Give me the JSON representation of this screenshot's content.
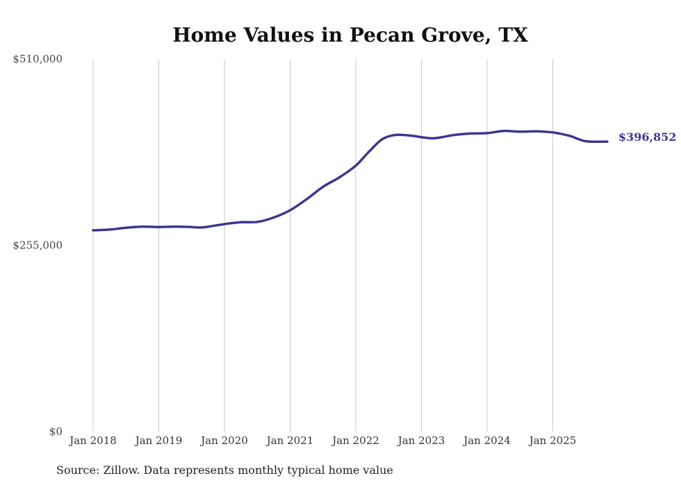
{
  "chart_data": {
    "type": "line",
    "title": "Home Values in Pecan Grove, TX",
    "source": "Source: Zillow. Data represents monthly typical home value",
    "ylim": [
      0,
      510000
    ],
    "y_ticks": [
      {
        "value": 0,
        "label": "$0"
      },
      {
        "value": 255000,
        "label": "$255,000"
      },
      {
        "value": 510000,
        "label": "$510,000"
      }
    ],
    "x_ticks": [
      {
        "year": 2018,
        "label": "Jan 2018"
      },
      {
        "year": 2019,
        "label": "Jan 2019"
      },
      {
        "year": 2020,
        "label": "Jan 2020"
      },
      {
        "year": 2021,
        "label": "Jan 2021"
      },
      {
        "year": 2022,
        "label": "Jan 2022"
      },
      {
        "year": 2023,
        "label": "Jan 2023"
      },
      {
        "year": 2024,
        "label": "Jan 2024"
      },
      {
        "year": 2025,
        "label": "Jan 2025"
      }
    ],
    "xlim": [
      2018.0,
      2025.83
    ],
    "series": [
      {
        "name": "Typical home value",
        "color": "#3d3590",
        "end_label": "$396,852",
        "points": [
          [
            2018.0,
            275500
          ],
          [
            2018.25,
            276500
          ],
          [
            2018.5,
            279000
          ],
          [
            2018.75,
            280500
          ],
          [
            2019.0,
            280000
          ],
          [
            2019.25,
            280500
          ],
          [
            2019.5,
            280000
          ],
          [
            2019.67,
            279500
          ],
          [
            2020.0,
            284000
          ],
          [
            2020.25,
            286500
          ],
          [
            2020.5,
            287000
          ],
          [
            2020.75,
            293000
          ],
          [
            2021.0,
            303000
          ],
          [
            2021.25,
            318000
          ],
          [
            2021.5,
            335000
          ],
          [
            2021.75,
            348000
          ],
          [
            2022.0,
            364000
          ],
          [
            2022.2,
            383000
          ],
          [
            2022.4,
            400000
          ],
          [
            2022.6,
            406000
          ],
          [
            2022.85,
            405000
          ],
          [
            2023.0,
            403000
          ],
          [
            2023.2,
            401500
          ],
          [
            2023.5,
            406000
          ],
          [
            2023.75,
            408000
          ],
          [
            2024.0,
            408500
          ],
          [
            2024.25,
            411500
          ],
          [
            2024.5,
            410500
          ],
          [
            2024.75,
            411000
          ],
          [
            2025.0,
            409500
          ],
          [
            2025.25,
            405000
          ],
          [
            2025.5,
            397500
          ],
          [
            2025.83,
            396852
          ]
        ]
      }
    ]
  }
}
